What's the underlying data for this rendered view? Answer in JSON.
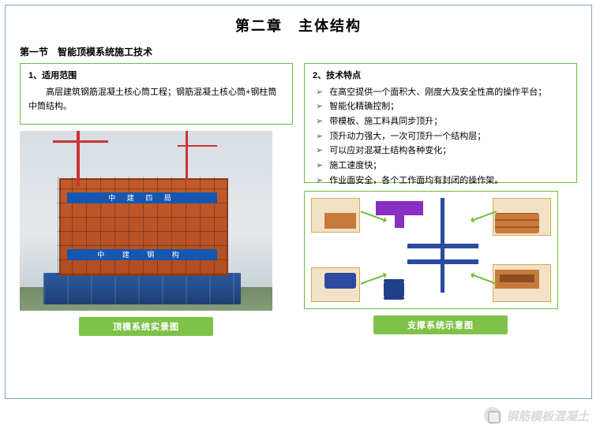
{
  "chapter_title": "第二章　主体结构",
  "section_title": "第一节　智能顶模系统施工技术",
  "left_box": {
    "heading": "1、适用范围",
    "text": "高层建筑钢筋混凝土核心筒工程；钢筋混凝土核心筒+钢柱筒中筒结构。"
  },
  "right_box": {
    "heading": "2、技术特点",
    "items": [
      "在高空提供一个面积大、刚度大及安全性高的操作平台；",
      "智能化精确控制；",
      "带模板、施工料具同步顶升；",
      "顶升动力强大，一次可顶升一个结构层；",
      "可以应对混凝土结构各种变化；",
      "施工速度快；",
      "作业面安全，各个工作面均有封闭的操作架。"
    ]
  },
  "photo": {
    "banner1": "中 建 四 局",
    "banner2": "中 建 钢 构"
  },
  "caption_left": "顶模系统实景图",
  "caption_right": "支撑系统示意图",
  "watermark": "钢筋模板混凝土",
  "colors": {
    "frame_border": "#7aa5c4",
    "box_border": "#6bbf3f",
    "caption_bg": "#7fc24a",
    "caption_fg": "#ffffff",
    "arrow": "#6fbf3a",
    "purple_part": "#8a2fc4",
    "blue_part": "#2b4aa0",
    "wood": "#c77a3a"
  }
}
